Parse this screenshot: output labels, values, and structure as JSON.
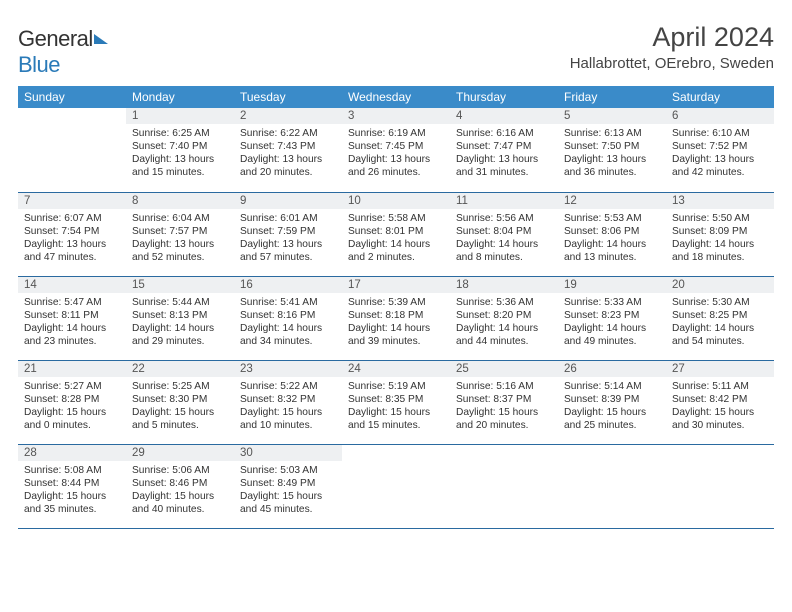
{
  "logo": {
    "part1": "General",
    "part2": "Blue"
  },
  "title": "April 2024",
  "location": "Hallabrottet, OErebro, Sweden",
  "colors": {
    "header_bg": "#3a8bc9",
    "row_divider": "#2a6aa0",
    "daynum_bg": "#eef0f2",
    "text": "#333333",
    "logo_blue": "#2a7ab8"
  },
  "fonts": {
    "title_pt": 27,
    "location_pt": 15,
    "th_pt": 12,
    "daynum_pt": 11.5,
    "body_pt": 10.2
  },
  "weekdays": [
    "Sunday",
    "Monday",
    "Tuesday",
    "Wednesday",
    "Thursday",
    "Friday",
    "Saturday"
  ],
  "weeks": [
    [
      null,
      {
        "n": "1",
        "sunrise": "6:25 AM",
        "sunset": "7:40 PM",
        "daylight": "13 hours and 15 minutes."
      },
      {
        "n": "2",
        "sunrise": "6:22 AM",
        "sunset": "7:43 PM",
        "daylight": "13 hours and 20 minutes."
      },
      {
        "n": "3",
        "sunrise": "6:19 AM",
        "sunset": "7:45 PM",
        "daylight": "13 hours and 26 minutes."
      },
      {
        "n": "4",
        "sunrise": "6:16 AM",
        "sunset": "7:47 PM",
        "daylight": "13 hours and 31 minutes."
      },
      {
        "n": "5",
        "sunrise": "6:13 AM",
        "sunset": "7:50 PM",
        "daylight": "13 hours and 36 minutes."
      },
      {
        "n": "6",
        "sunrise": "6:10 AM",
        "sunset": "7:52 PM",
        "daylight": "13 hours and 42 minutes."
      }
    ],
    [
      {
        "n": "7",
        "sunrise": "6:07 AM",
        "sunset": "7:54 PM",
        "daylight": "13 hours and 47 minutes."
      },
      {
        "n": "8",
        "sunrise": "6:04 AM",
        "sunset": "7:57 PM",
        "daylight": "13 hours and 52 minutes."
      },
      {
        "n": "9",
        "sunrise": "6:01 AM",
        "sunset": "7:59 PM",
        "daylight": "13 hours and 57 minutes."
      },
      {
        "n": "10",
        "sunrise": "5:58 AM",
        "sunset": "8:01 PM",
        "daylight": "14 hours and 2 minutes."
      },
      {
        "n": "11",
        "sunrise": "5:56 AM",
        "sunset": "8:04 PM",
        "daylight": "14 hours and 8 minutes."
      },
      {
        "n": "12",
        "sunrise": "5:53 AM",
        "sunset": "8:06 PM",
        "daylight": "14 hours and 13 minutes."
      },
      {
        "n": "13",
        "sunrise": "5:50 AM",
        "sunset": "8:09 PM",
        "daylight": "14 hours and 18 minutes."
      }
    ],
    [
      {
        "n": "14",
        "sunrise": "5:47 AM",
        "sunset": "8:11 PM",
        "daylight": "14 hours and 23 minutes."
      },
      {
        "n": "15",
        "sunrise": "5:44 AM",
        "sunset": "8:13 PM",
        "daylight": "14 hours and 29 minutes."
      },
      {
        "n": "16",
        "sunrise": "5:41 AM",
        "sunset": "8:16 PM",
        "daylight": "14 hours and 34 minutes."
      },
      {
        "n": "17",
        "sunrise": "5:39 AM",
        "sunset": "8:18 PM",
        "daylight": "14 hours and 39 minutes."
      },
      {
        "n": "18",
        "sunrise": "5:36 AM",
        "sunset": "8:20 PM",
        "daylight": "14 hours and 44 minutes."
      },
      {
        "n": "19",
        "sunrise": "5:33 AM",
        "sunset": "8:23 PM",
        "daylight": "14 hours and 49 minutes."
      },
      {
        "n": "20",
        "sunrise": "5:30 AM",
        "sunset": "8:25 PM",
        "daylight": "14 hours and 54 minutes."
      }
    ],
    [
      {
        "n": "21",
        "sunrise": "5:27 AM",
        "sunset": "8:28 PM",
        "daylight": "15 hours and 0 minutes."
      },
      {
        "n": "22",
        "sunrise": "5:25 AM",
        "sunset": "8:30 PM",
        "daylight": "15 hours and 5 minutes."
      },
      {
        "n": "23",
        "sunrise": "5:22 AM",
        "sunset": "8:32 PM",
        "daylight": "15 hours and 10 minutes."
      },
      {
        "n": "24",
        "sunrise": "5:19 AM",
        "sunset": "8:35 PM",
        "daylight": "15 hours and 15 minutes."
      },
      {
        "n": "25",
        "sunrise": "5:16 AM",
        "sunset": "8:37 PM",
        "daylight": "15 hours and 20 minutes."
      },
      {
        "n": "26",
        "sunrise": "5:14 AM",
        "sunset": "8:39 PM",
        "daylight": "15 hours and 25 minutes."
      },
      {
        "n": "27",
        "sunrise": "5:11 AM",
        "sunset": "8:42 PM",
        "daylight": "15 hours and 30 minutes."
      }
    ],
    [
      {
        "n": "28",
        "sunrise": "5:08 AM",
        "sunset": "8:44 PM",
        "daylight": "15 hours and 35 minutes."
      },
      {
        "n": "29",
        "sunrise": "5:06 AM",
        "sunset": "8:46 PM",
        "daylight": "15 hours and 40 minutes."
      },
      {
        "n": "30",
        "sunrise": "5:03 AM",
        "sunset": "8:49 PM",
        "daylight": "15 hours and 45 minutes."
      },
      null,
      null,
      null,
      null
    ]
  ],
  "labels": {
    "sunrise": "Sunrise:",
    "sunset": "Sunset:",
    "daylight": "Daylight:"
  }
}
